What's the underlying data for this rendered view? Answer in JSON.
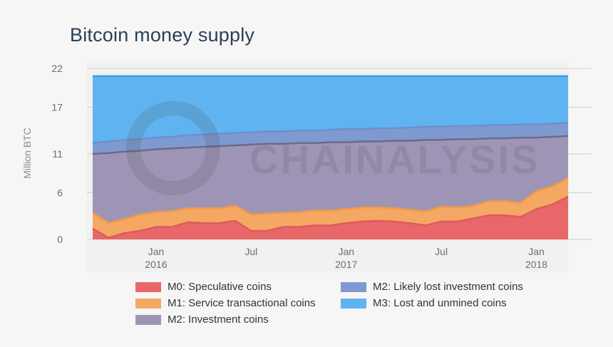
{
  "title": "Bitcoin money supply",
  "watermark": "CHAINALYSIS",
  "chart_data": {
    "type": "area",
    "stacked": true,
    "title": "Bitcoin money supply",
    "ylabel": "Million BTC",
    "ylim": [
      0,
      22
    ],
    "yticks": [
      0,
      6,
      11,
      17,
      22
    ],
    "grid": true,
    "legend_position": "bottom",
    "x": [
      "2015-09",
      "2015-10",
      "2015-11",
      "2015-12",
      "2016-01",
      "2016-02",
      "2016-03",
      "2016-04",
      "2016-05",
      "2016-06",
      "2016-07",
      "2016-08",
      "2016-09",
      "2016-10",
      "2016-11",
      "2016-12",
      "2017-01",
      "2017-02",
      "2017-03",
      "2017-04",
      "2017-05",
      "2017-06",
      "2017-07",
      "2017-08",
      "2017-09",
      "2017-10",
      "2017-11",
      "2017-12",
      "2018-01",
      "2018-02",
      "2018-03"
    ],
    "xticks": [
      {
        "date": "2016-01",
        "label": "Jan",
        "sublabel": "2016"
      },
      {
        "date": "2016-07",
        "label": "Jul",
        "sublabel": ""
      },
      {
        "date": "2017-01",
        "label": "Jan",
        "sublabel": "2017"
      },
      {
        "date": "2017-07",
        "label": "Jul",
        "sublabel": ""
      },
      {
        "date": "2018-01",
        "label": "Jan",
        "sublabel": "2018"
      }
    ],
    "series_cumulative": [
      {
        "name": "M0: Speculative coins",
        "color": "#e8686a",
        "values": [
          1.4,
          0.2,
          0.8,
          1.1,
          1.6,
          1.6,
          2.2,
          2.1,
          2.1,
          2.4,
          1.1,
          1.1,
          1.6,
          1.6,
          1.8,
          1.8,
          2.1,
          2.3,
          2.4,
          2.3,
          2.1,
          1.8,
          2.3,
          2.3,
          2.7,
          3.1,
          3.1,
          2.9,
          3.9,
          4.5,
          5.5
        ]
      },
      {
        "name": "M1: Service transactional coins",
        "color": "#f5a863",
        "values": [
          3.4,
          2.1,
          2.6,
          3.2,
          3.5,
          3.6,
          4.0,
          4.0,
          4.0,
          4.3,
          3.2,
          3.3,
          3.4,
          3.5,
          3.7,
          3.7,
          3.9,
          4.1,
          4.1,
          4.0,
          3.8,
          3.6,
          4.2,
          4.1,
          4.3,
          4.9,
          4.9,
          4.7,
          6.2,
          6.8,
          7.9
        ]
      },
      {
        "name": "M2: Investment coins",
        "color": "#9e95b6",
        "values": [
          11.0,
          11.1,
          11.3,
          11.4,
          11.6,
          11.7,
          11.8,
          11.9,
          12.0,
          12.1,
          12.2,
          12.3,
          12.3,
          12.4,
          12.4,
          12.5,
          12.5,
          12.6,
          12.6,
          12.7,
          12.7,
          12.8,
          12.8,
          12.9,
          12.9,
          13.0,
          13.0,
          13.1,
          13.1,
          13.2,
          13.3
        ]
      },
      {
        "name": "M2: Likely lost investment coins",
        "color": "#7e9ad0",
        "values": [
          12.4,
          12.6,
          12.8,
          12.9,
          13.1,
          13.2,
          13.4,
          13.5,
          13.6,
          13.7,
          13.8,
          13.9,
          13.9,
          14.0,
          14.0,
          14.1,
          14.2,
          14.2,
          14.3,
          14.3,
          14.4,
          14.5,
          14.5,
          14.6,
          14.6,
          14.7,
          14.7,
          14.8,
          14.8,
          14.9,
          15.0
        ]
      },
      {
        "name": "M3: Lost and unmined coins",
        "color": "#5fb3f0",
        "values": [
          21.0,
          21.0,
          21.0,
          21.0,
          21.0,
          21.0,
          21.0,
          21.0,
          21.0,
          21.0,
          21.0,
          21.0,
          21.0,
          21.0,
          21.0,
          21.0,
          21.0,
          21.0,
          21.0,
          21.0,
          21.0,
          21.0,
          21.0,
          21.0,
          21.0,
          21.0,
          21.0,
          21.0,
          21.0,
          21.0,
          21.0
        ]
      }
    ],
    "line_colors": [
      "#e05a5a",
      "#f59a45",
      "#6c6a8a",
      "#6f8fcc",
      "#3f9fe6"
    ]
  },
  "legend": [
    {
      "label": "M0: Speculative coins",
      "color": "#e8686a"
    },
    {
      "label": "M2: Likely lost investment coins",
      "color": "#7e9ad0"
    },
    {
      "label": "M1: Service transactional coins",
      "color": "#f5a863"
    },
    {
      "label": "M3: Lost and unmined coins",
      "color": "#5fb3f0"
    },
    {
      "label": "M2: Investment coins",
      "color": "#9e95b6"
    }
  ]
}
